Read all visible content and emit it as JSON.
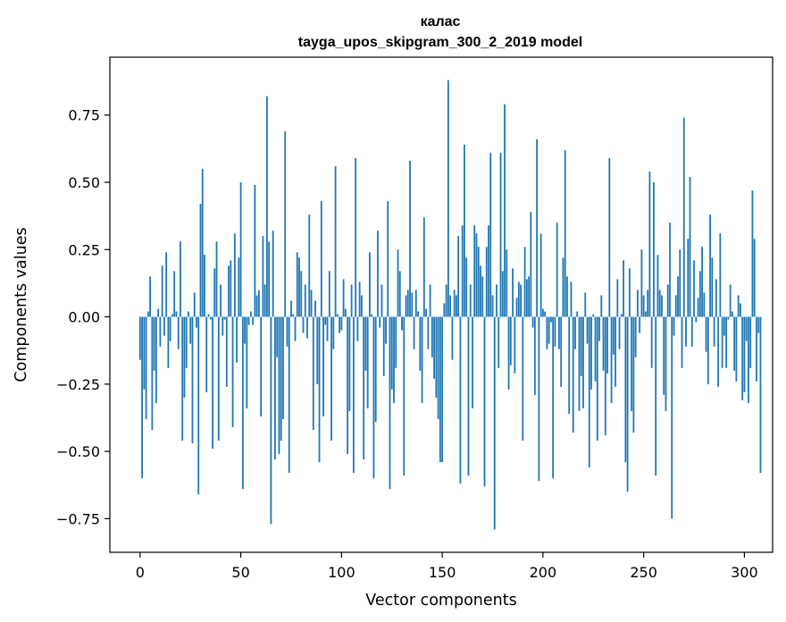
{
  "chart_data": {
    "type": "bar",
    "title": "калас",
    "subtitle": "tayga_upos_skipgram_300_2_2019 model",
    "xlabel": "Vector components",
    "ylabel": "Components values",
    "xlim": [
      -15,
      314
    ],
    "ylim": [
      -0.875,
      0.965
    ],
    "xticks": [
      0,
      50,
      100,
      150,
      200,
      250,
      300
    ],
    "yticks": [
      -0.75,
      -0.5,
      -0.25,
      0.0,
      0.25,
      0.5,
      0.75
    ],
    "ytick_labels": [
      "−0.75",
      "−0.50",
      "−0.25",
      "0.00",
      "0.25",
      "0.50",
      "0.75"
    ],
    "bar_color": "#1f77b4",
    "grid": false,
    "series": [
      {
        "values": [
          -0.16,
          -0.6,
          -0.27,
          -0.38,
          0.02,
          0.15,
          -0.42,
          -0.2,
          -0.32,
          0.03,
          -0.11,
          0.19,
          -0.07,
          0.24,
          -0.19,
          -0.09,
          0.01,
          0.17,
          0.02,
          -0.12,
          0.28,
          -0.46,
          -0.3,
          -0.19,
          0.02,
          -0.1,
          -0.47,
          0.09,
          -0.04,
          -0.66,
          0.42,
          0.55,
          0.23,
          -0.28,
          0.01,
          -0.01,
          -0.49,
          0.18,
          0.28,
          -0.46,
          0.12,
          -0.07,
          -0.01,
          -0.26,
          0.19,
          0.21,
          -0.41,
          0.31,
          -0.17,
          0.22,
          0.5,
          -0.64,
          -0.1,
          -0.34,
          -0.03,
          0.02,
          -0.03,
          0.49,
          0.08,
          0.1,
          -0.37,
          0.3,
          0.12,
          0.82,
          0.28,
          -0.77,
          0.32,
          -0.53,
          -0.15,
          -0.51,
          -0.46,
          -0.38,
          0.69,
          -0.11,
          -0.58,
          0.06,
          0.01,
          -0.09,
          0.24,
          0.22,
          0.17,
          -0.06,
          0.12,
          -0.08,
          0.38,
          0.1,
          -0.42,
          0.06,
          -0.25,
          -0.54,
          0.43,
          -0.37,
          -0.03,
          -0.09,
          0.17,
          -0.46,
          -0.12,
          0.56,
          0.01,
          -0.06,
          -0.05,
          0.14,
          0.03,
          -0.51,
          -0.35,
          0.12,
          -0.58,
          0.59,
          -0.09,
          0.13,
          0.08,
          -0.53,
          -0.2,
          -0.34,
          0.24,
          0.01,
          -0.6,
          -0.39,
          0.32,
          -0.04,
          0.12,
          -0.22,
          -0.1,
          0.43,
          -0.64,
          -0.27,
          -0.32,
          -0.19,
          0.25,
          0.17,
          -0.05,
          -0.59,
          0.08,
          0.1,
          0.58,
          0.09,
          -0.12,
          0.1,
          0.02,
          -0.2,
          -0.32,
          0.37,
          0.03,
          -0.12,
          0.12,
          -0.15,
          -0.23,
          -0.3,
          -0.38,
          -0.54,
          -0.54,
          0.05,
          0.12,
          0.88,
          0.08,
          -0.16,
          0.1,
          0.08,
          0.3,
          -0.62,
          0.34,
          0.64,
          0.22,
          -0.59,
          0.12,
          -0.34,
          0.34,
          0.31,
          0.26,
          0.19,
          0.15,
          -0.63,
          0.26,
          0.34,
          0.61,
          0.08,
          -0.79,
          0.12,
          -0.19,
          0.61,
          0.17,
          0.79,
          0.25,
          -0.27,
          -0.18,
          0.18,
          -0.21,
          0.07,
          0.13,
          0.12,
          -0.46,
          0.26,
          0.14,
          0.15,
          0.39,
          -0.04,
          -0.29,
          0.66,
          -0.61,
          0.31,
          0.03,
          0.02,
          -0.12,
          -0.1,
          -0.02,
          -0.6,
          -0.11,
          0.35,
          -0.12,
          -0.26,
          0.22,
          0.62,
          0.15,
          -0.36,
          0.13,
          -0.43,
          -0.12,
          0.02,
          -0.35,
          -0.22,
          -0.34,
          0.09,
          -0.1,
          -0.56,
          -0.27,
          0.01,
          -0.24,
          -0.46,
          -0.09,
          0.08,
          -0.2,
          -0.44,
          -0.21,
          0.59,
          -0.32,
          -0.14,
          -0.26,
          0.14,
          -0.12,
          0.01,
          0.21,
          -0.54,
          -0.65,
          0.18,
          -0.35,
          -0.43,
          -0.15,
          0.1,
          -0.06,
          0.25,
          0.08,
          0.02,
          0.1,
          0.54,
          -0.19,
          0.5,
          -0.59,
          0.23,
          0.1,
          0.08,
          -0.29,
          -0.35,
          0.12,
          0.35,
          -0.75,
          -0.07,
          0.08,
          0.15,
          0.25,
          -0.19,
          0.74,
          -0.11,
          0.29,
          0.52,
          -0.11,
          0.21,
          -0.02,
          0.07,
          0.17,
          0.26,
          0.09,
          -0.13,
          -0.25,
          0.38,
          0.22,
          -0.11,
          0.14,
          -0.26,
          0.31,
          -0.19,
          -0.07,
          -0.19,
          -0.01,
          0.12,
          0.02,
          -0.2,
          -0.24,
          0.08,
          0.05,
          -0.31,
          -0.28,
          -0.09,
          -0.32,
          -0.19,
          0.47,
          0.29,
          -0.24,
          -0.06,
          -0.58
        ]
      }
    ]
  }
}
